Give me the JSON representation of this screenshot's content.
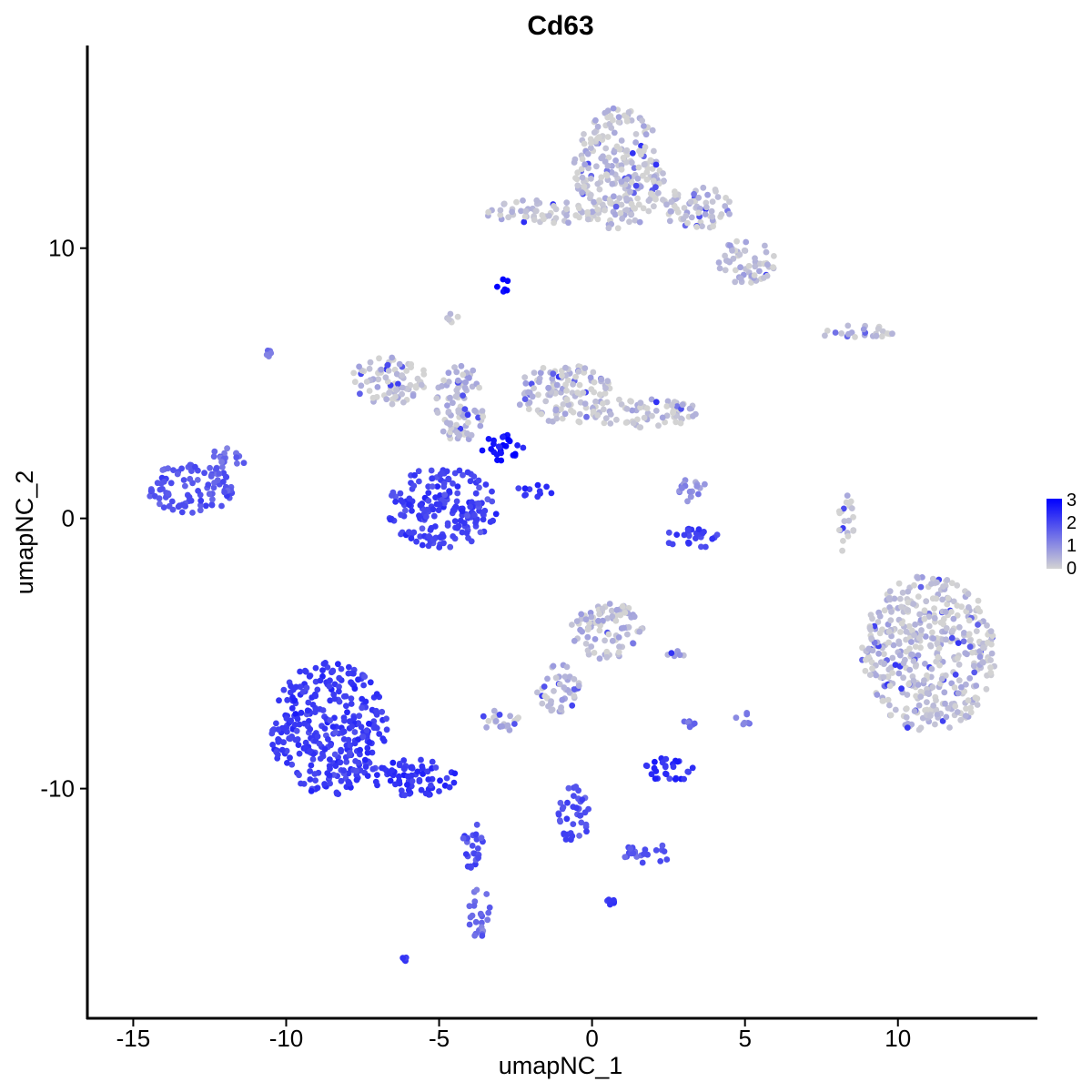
{
  "chart_data": {
    "type": "scatter",
    "title": "Cd63",
    "xlabel": "umapNC_1",
    "ylabel": "umapNC_2",
    "xlim": [
      -16.5,
      14.5
    ],
    "ylim": [
      -18.5,
      17.5
    ],
    "x_ticks": [
      -15,
      -10,
      -5,
      0,
      5,
      10
    ],
    "x_tick_labels": [
      "-15",
      "-10",
      "-5",
      "0",
      "5",
      "10"
    ],
    "y_ticks": [
      -10,
      0,
      10
    ],
    "y_tick_labels": [
      "-10",
      "0",
      "10"
    ],
    "grid": false,
    "legend": {
      "placement": "right",
      "type": "colorbar",
      "min": 0,
      "max": 3,
      "ticks": [
        0,
        1,
        2,
        3
      ],
      "tick_labels": [
        "0",
        "1",
        "2",
        "3"
      ],
      "low_color": "#d3d3d3",
      "high_color": "#0000ff"
    },
    "clusters": [
      {
        "cx": 0.9,
        "cy": 12.9,
        "rx": 1.5,
        "ry": 2.3,
        "expr": 0.1
      },
      {
        "cx": -1.6,
        "cy": 11.3,
        "rx": 1.9,
        "ry": 0.5,
        "expr": 0.12
      },
      {
        "cx": 3.4,
        "cy": 11.5,
        "rx": 1.2,
        "ry": 0.8,
        "expr": 0.1
      },
      {
        "cx": 5.0,
        "cy": 9.5,
        "rx": 1.0,
        "ry": 0.8,
        "expr": 0.15
      },
      {
        "cx": 8.6,
        "cy": 6.9,
        "rx": 1.3,
        "ry": 0.25,
        "expr": 0.12
      },
      {
        "cx": -2.9,
        "cy": 8.6,
        "rx": 0.25,
        "ry": 0.25,
        "expr": 2.9
      },
      {
        "cx": -6.6,
        "cy": 5.1,
        "rx": 1.3,
        "ry": 0.9,
        "expr": 0.08
      },
      {
        "cx": -4.3,
        "cy": 4.2,
        "rx": 0.8,
        "ry": 1.5,
        "expr": 0.2
      },
      {
        "cx": -0.9,
        "cy": 4.6,
        "rx": 1.6,
        "ry": 1.1,
        "expr": 0.12
      },
      {
        "cx": 1.7,
        "cy": 3.9,
        "rx": 1.8,
        "ry": 0.6,
        "expr": 0.1
      },
      {
        "cx": -2.9,
        "cy": 2.6,
        "rx": 0.7,
        "ry": 0.5,
        "expr": 2.7
      },
      {
        "cx": -4.9,
        "cy": 0.4,
        "rx": 1.8,
        "ry": 1.5,
        "expr": 1.9
      },
      {
        "cx": -13.1,
        "cy": 1.1,
        "rx": 1.5,
        "ry": 0.9,
        "expr": 1.6
      },
      {
        "cx": -11.9,
        "cy": 2.2,
        "rx": 0.6,
        "ry": 0.5,
        "expr": 1.4
      },
      {
        "cx": -1.9,
        "cy": 1.0,
        "rx": 0.6,
        "ry": 0.25,
        "expr": 2.2
      },
      {
        "cx": 3.3,
        "cy": 1.0,
        "rx": 0.5,
        "ry": 0.5,
        "expr": 0.7
      },
      {
        "cx": 3.3,
        "cy": -0.7,
        "rx": 1.0,
        "ry": 0.4,
        "expr": 1.9
      },
      {
        "cx": 8.3,
        "cy": -0.2,
        "rx": 0.25,
        "ry": 1.2,
        "expr": 0.05
      },
      {
        "cx": 11.0,
        "cy": -5.0,
        "rx": 2.2,
        "ry": 2.9,
        "expr": 0.1
      },
      {
        "cx": 0.5,
        "cy": -4.2,
        "rx": 1.2,
        "ry": 1.1,
        "expr": 0.2
      },
      {
        "cx": -1.1,
        "cy": -6.3,
        "rx": 0.7,
        "ry": 0.9,
        "expr": 0.25
      },
      {
        "cx": -3.0,
        "cy": -7.5,
        "rx": 0.8,
        "ry": 0.4,
        "expr": 0.3
      },
      {
        "cx": -8.6,
        "cy": -7.8,
        "rx": 1.9,
        "ry": 2.5,
        "expr": 2.0
      },
      {
        "cx": -5.8,
        "cy": -9.6,
        "rx": 1.4,
        "ry": 0.7,
        "expr": 2.1
      },
      {
        "cx": -3.9,
        "cy": -12.0,
        "rx": 0.35,
        "ry": 1.0,
        "expr": 1.7
      },
      {
        "cx": -3.7,
        "cy": -14.6,
        "rx": 0.4,
        "ry": 0.9,
        "expr": 1.2
      },
      {
        "cx": -0.6,
        "cy": -11.0,
        "rx": 0.5,
        "ry": 1.1,
        "expr": 1.7
      },
      {
        "cx": 1.8,
        "cy": -12.4,
        "rx": 0.8,
        "ry": 0.4,
        "expr": 1.6
      },
      {
        "cx": 2.5,
        "cy": -9.3,
        "rx": 0.8,
        "ry": 0.5,
        "expr": 2.2
      },
      {
        "cx": 3.3,
        "cy": -7.6,
        "rx": 0.3,
        "ry": 0.3,
        "expr": 1.3
      },
      {
        "cx": 5.0,
        "cy": -7.3,
        "rx": 0.3,
        "ry": 0.35,
        "expr": 0.9
      },
      {
        "cx": 2.8,
        "cy": -5.0,
        "rx": 0.4,
        "ry": 0.12,
        "expr": 0.4
      },
      {
        "cx": 0.6,
        "cy": -14.2,
        "rx": 0.15,
        "ry": 0.15,
        "expr": 2.0
      },
      {
        "cx": -6.1,
        "cy": -16.3,
        "rx": 0.15,
        "ry": 0.1,
        "expr": 2.2
      },
      {
        "cx": -10.6,
        "cy": 6.1,
        "rx": 0.12,
        "ry": 0.12,
        "expr": 1.0
      },
      {
        "cx": -4.6,
        "cy": 7.4,
        "rx": 0.3,
        "ry": 0.2,
        "expr": 0.2
      }
    ]
  }
}
